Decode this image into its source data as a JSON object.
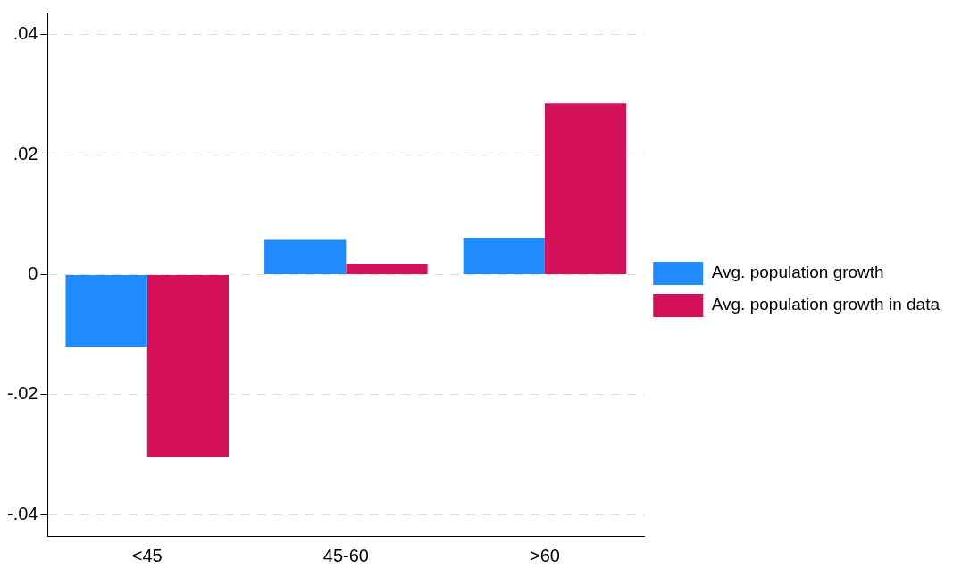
{
  "chart_data": {
    "type": "bar",
    "categories": [
      "<45",
      "45-60",
      ">60"
    ],
    "series": [
      {
        "name": "Avg. population growth",
        "color": "#1f8bff",
        "values": [
          -0.012,
          0.0058,
          0.0061
        ]
      },
      {
        "name": "Avg. population growth in data",
        "color": "#d41159",
        "values": [
          -0.0304,
          0.0017,
          0.0286
        ]
      }
    ],
    "ylim": [
      -0.0435,
      0.0435
    ],
    "yticks": [
      {
        "value": -0.04,
        "label": "-.04"
      },
      {
        "value": -0.02,
        "label": "-.02"
      },
      0,
      {
        "value": 0.02,
        "label": ".02"
      },
      {
        "value": 0.04,
        "label": ".04"
      }
    ],
    "grid": "y",
    "legend": "right"
  }
}
